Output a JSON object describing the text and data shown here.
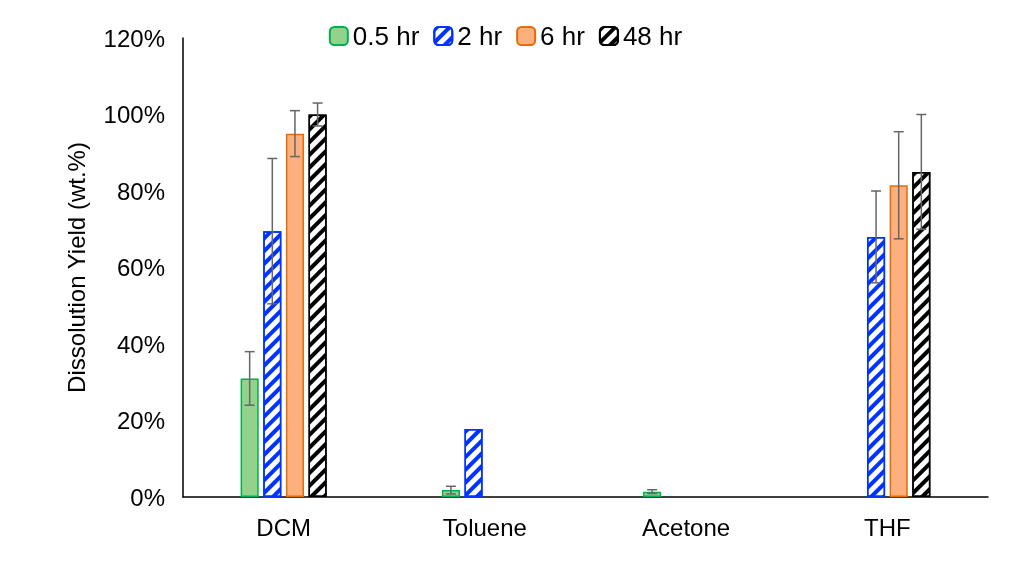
{
  "chart_data": {
    "type": "bar",
    "ylabel": "Dissolution Yield (wt.%)",
    "categories": [
      "DCM",
      "Toluene",
      "Acetone",
      "THF"
    ],
    "series": [
      {
        "name": "0.5 hr",
        "color": "#92d28a",
        "values": [
          31,
          1.8,
          1.4,
          null
        ],
        "errors": [
          7,
          1,
          0.5,
          null
        ]
      },
      {
        "name": "2 hr",
        "color": "#0033ff",
        "values": [
          69.5,
          17.8,
          null,
          68
        ],
        "errors": [
          19,
          null,
          null,
          12
        ]
      },
      {
        "name": "6 hr",
        "color": "#fbb07d",
        "values": [
          95,
          null,
          null,
          81.5
        ],
        "errors": [
          6,
          null,
          null,
          14
        ]
      },
      {
        "name": "48 hr",
        "color": "#000000",
        "values": [
          100,
          null,
          null,
          85
        ],
        "errors": [
          3,
          null,
          null,
          15
        ]
      }
    ],
    "ylim": [
      0,
      120
    ],
    "yticks": [
      {
        "value": 0,
        "label": "0%"
      },
      {
        "value": 20,
        "label": "20%"
      },
      {
        "value": 40,
        "label": "40%"
      },
      {
        "value": 60,
        "label": "60%"
      },
      {
        "value": 80,
        "label": "80%"
      },
      {
        "value": 100,
        "label": "100%"
      },
      {
        "value": 120,
        "label": "120%"
      }
    ],
    "grid": false,
    "legend": "top"
  }
}
